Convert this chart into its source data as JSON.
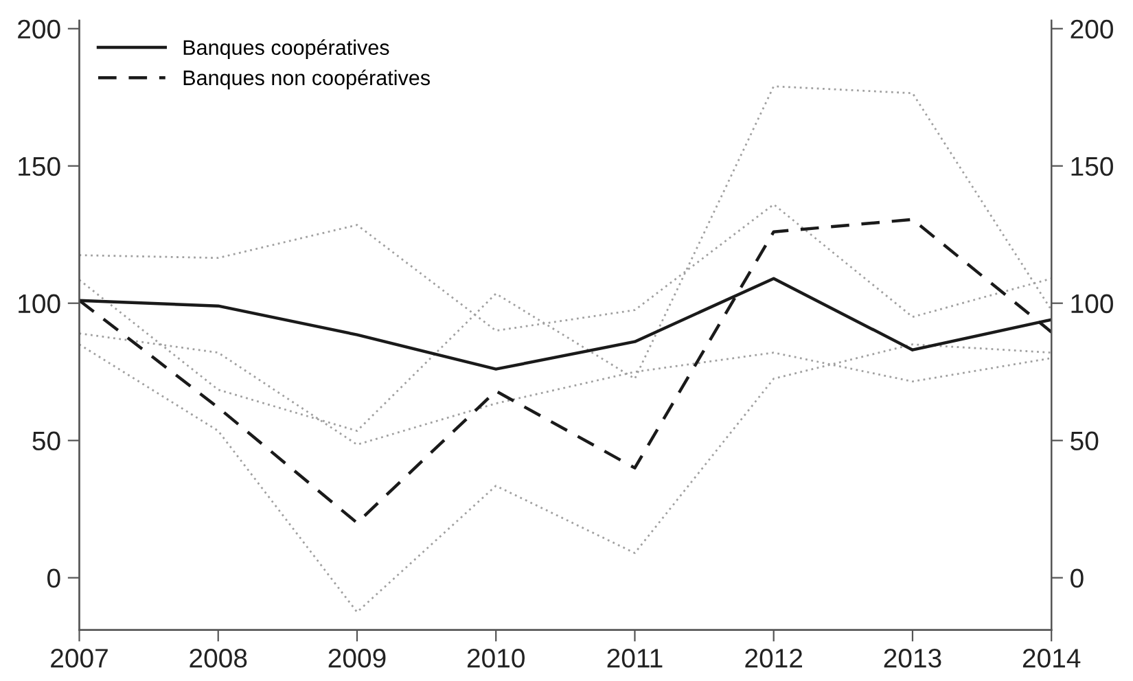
{
  "chart_data": {
    "type": "line",
    "x": [
      2007,
      2008,
      2009,
      2010,
      2011,
      2012,
      2013,
      2014
    ],
    "series": [
      {
        "name": "Banques coopératives",
        "color": "#1a1a1a",
        "line_style": "solid",
        "values": [
          101,
          99,
          88.5,
          76,
          86,
          109,
          83,
          94
        ]
      },
      {
        "name": "Banques non coopératives",
        "color": "#1a1a1a",
        "line_style": "dashed",
        "values": [
          101,
          62,
          20,
          68,
          40,
          126,
          130.5,
          89.5
        ]
      },
      {
        "color": "#a0a0a0",
        "line_style": "dotted",
        "values": [
          117.5,
          116.5,
          128.5,
          90,
          97.5,
          136,
          95,
          109
        ]
      },
      {
        "color": "#a0a0a0",
        "line_style": "dotted",
        "values": [
          108.5,
          68.5,
          53.5,
          103.5,
          72.5,
          179,
          176.5,
          97.5
        ]
      },
      {
        "color": "#a0a0a0",
        "line_style": "dotted",
        "values": [
          89,
          82,
          48.5,
          63.5,
          75,
          82,
          71.5,
          80
        ]
      },
      {
        "color": "#a0a0a0",
        "line_style": "dotted",
        "values": [
          85,
          53.5,
          -12.5,
          33.5,
          9,
          72.5,
          85,
          82
        ]
      }
    ],
    "xlim": [
      2007,
      2014
    ],
    "xticks": [
      2007,
      2008,
      2009,
      2010,
      2011,
      2012,
      2013,
      2014
    ],
    "ylim": [
      -19,
      203
    ],
    "yticks": [
      0,
      50,
      100,
      150,
      200
    ],
    "y2lim": [
      -19,
      203
    ],
    "y2ticks": [
      0,
      50,
      100,
      150,
      200
    ],
    "grid": false,
    "legend": "top left",
    "marker": "none"
  }
}
